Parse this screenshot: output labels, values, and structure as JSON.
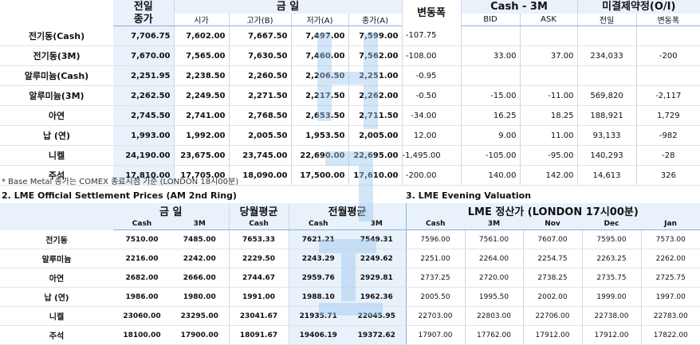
{
  "table1": {
    "headers": {
      "prev": [
        "전일",
        "종가"
      ],
      "today": "금 일",
      "today_sub": [
        "시가",
        "고가(B)",
        "저가(A)",
        "종가(A)"
      ],
      "change": "변동폭",
      "cash3m": "Cash - 3M",
      "cash3m_sub": [
        "BID",
        "ASK"
      ],
      "oi": "미결제약정(O/I)",
      "oi_sub": [
        "전일",
        "변동폭"
      ]
    },
    "rows": [
      {
        "name": "전기동(Cash)",
        "prev": "7,706.75",
        "open": "7,602.00",
        "high": "7,667.50",
        "low": "7,497.00",
        "close": "7,599.00",
        "change": "-107.75",
        "bid": "",
        "ask": "",
        "oi": "",
        "oi_chg": ""
      },
      {
        "name": "전기동(3M)",
        "prev": "7,670.00",
        "open": "7,565.00",
        "high": "7,630.50",
        "low": "7,460.00",
        "close": "7,562.00",
        "change": "-108.00",
        "bid": "33.00",
        "ask": "37.00",
        "oi": "234,033",
        "oi_chg": "-200"
      },
      {
        "name": "알루미늄(Cash)",
        "prev": "2,251.95",
        "open": "2,238.50",
        "high": "2,260.50",
        "low": "2,206.50",
        "close": "2,251.00",
        "change": "-0.95",
        "bid": "",
        "ask": "",
        "oi": "",
        "oi_chg": ""
      },
      {
        "name": "알루미늄(3M)",
        "prev": "2,262.50",
        "open": "2,249.50",
        "high": "2,271.50",
        "low": "2,217.50",
        "close": "2,262.00",
        "change": "-0.50",
        "bid": "-15.00",
        "ask": "-11.00",
        "oi": "569,820",
        "oi_chg": "-2,117"
      },
      {
        "name": "아연",
        "prev": "2,745.50",
        "open": "2,741.00",
        "high": "2,768.50",
        "low": "2,653.50",
        "close": "2,711.50",
        "change": "-34.00",
        "bid": "16.25",
        "ask": "18.25",
        "oi": "188,921",
        "oi_chg": "1,729"
      },
      {
        "name": "납 (연)",
        "prev": "1,993.00",
        "open": "1,992.00",
        "high": "2,005.50",
        "low": "1,953.50",
        "close": "2,005.00",
        "change": "12.00",
        "bid": "9.00",
        "ask": "11.00",
        "oi": "93,133",
        "oi_chg": "-982"
      },
      {
        "name": "니켈",
        "prev": "24,190.00",
        "open": "23,675.00",
        "high": "23,745.00",
        "low": "22,690.00",
        "close": "22,695.00",
        "change": "-1,495.00",
        "bid": "-105.00",
        "ask": "-95.00",
        "oi": "140,293",
        "oi_chg": "-28"
      },
      {
        "name": "주석",
        "prev": "17,810.00",
        "open": "17,705.00",
        "high": "18,090.00",
        "low": "17,500.00",
        "close": "17,610.00",
        "change": "-200.00",
        "bid": "140.00",
        "ask": "142.00",
        "oi": "14,613",
        "oi_chg": "326"
      }
    ]
  },
  "note": "* Base Metal 종가는 COMEX 종료시점 기준 (LONDON 18시00분)",
  "section2_title": "2. LME Official Settlement Prices (AM 2nd Ring)",
  "section3_title": "3. LME Evening Valuation",
  "table2": {
    "headers": {
      "today": "금 일",
      "month_avg": "당월평균",
      "prev_month_avg": "전월평균",
      "eval": "LME 정산가 (LONDON 17시00분)",
      "sub": [
        "Cash",
        "3M",
        "Cash",
        "Cash",
        "3M",
        "Cash",
        "3M",
        "Nov",
        "Dec",
        "Jan"
      ]
    },
    "rows": [
      {
        "name": "전기동",
        "cash": "7510.00",
        "m3": "7485.00",
        "mavg": "7653.33",
        "pcash": "7621.21",
        "p3m": "7549.31",
        "ecash": "7596.00",
        "e3m": "7561.00",
        "nov": "7607.00",
        "dec": "7595.00",
        "jan": "7573.00"
      },
      {
        "name": "알루미늄",
        "cash": "2216.00",
        "m3": "2242.00",
        "mavg": "2229.50",
        "pcash": "2243.29",
        "p3m": "2249.62",
        "ecash": "2251.00",
        "e3m": "2264.00",
        "nov": "2254.75",
        "dec": "2263.25",
        "jan": "2262.00"
      },
      {
        "name": "아연",
        "cash": "2682.00",
        "m3": "2666.00",
        "mavg": "2744.67",
        "pcash": "2959.76",
        "p3m": "2929.81",
        "ecash": "2737.25",
        "e3m": "2720.00",
        "nov": "2738.25",
        "dec": "2735.75",
        "jan": "2725.75"
      },
      {
        "name": "납 (연)",
        "cash": "1986.00",
        "m3": "1980.00",
        "mavg": "1991.00",
        "pcash": "1988.10",
        "p3m": "1962.36",
        "ecash": "2005.50",
        "e3m": "1995.50",
        "nov": "2002.00",
        "dec": "1999.00",
        "jan": "1997.00"
      },
      {
        "name": "니켈",
        "cash": "23060.00",
        "m3": "23295.00",
        "mavg": "23041.67",
        "pcash": "21935.71",
        "p3m": "22045.95",
        "ecash": "22703.00",
        "e3m": "22803.00",
        "nov": "22706.00",
        "dec": "22738.00",
        "jan": "22783.00"
      },
      {
        "name": "주석",
        "cash": "18100.00",
        "m3": "17900.00",
        "mavg": "18091.67",
        "pcash": "19406.19",
        "p3m": "19372.62",
        "ecash": "17907.00",
        "e3m": "17762.00",
        "nov": "17912.00",
        "dec": "17912.00",
        "jan": "17822.00"
      }
    ]
  },
  "colors": {
    "header_bg": "#e9f1fb",
    "header_rule": "#8ab2e2",
    "watermark": "#9cc8ee"
  }
}
